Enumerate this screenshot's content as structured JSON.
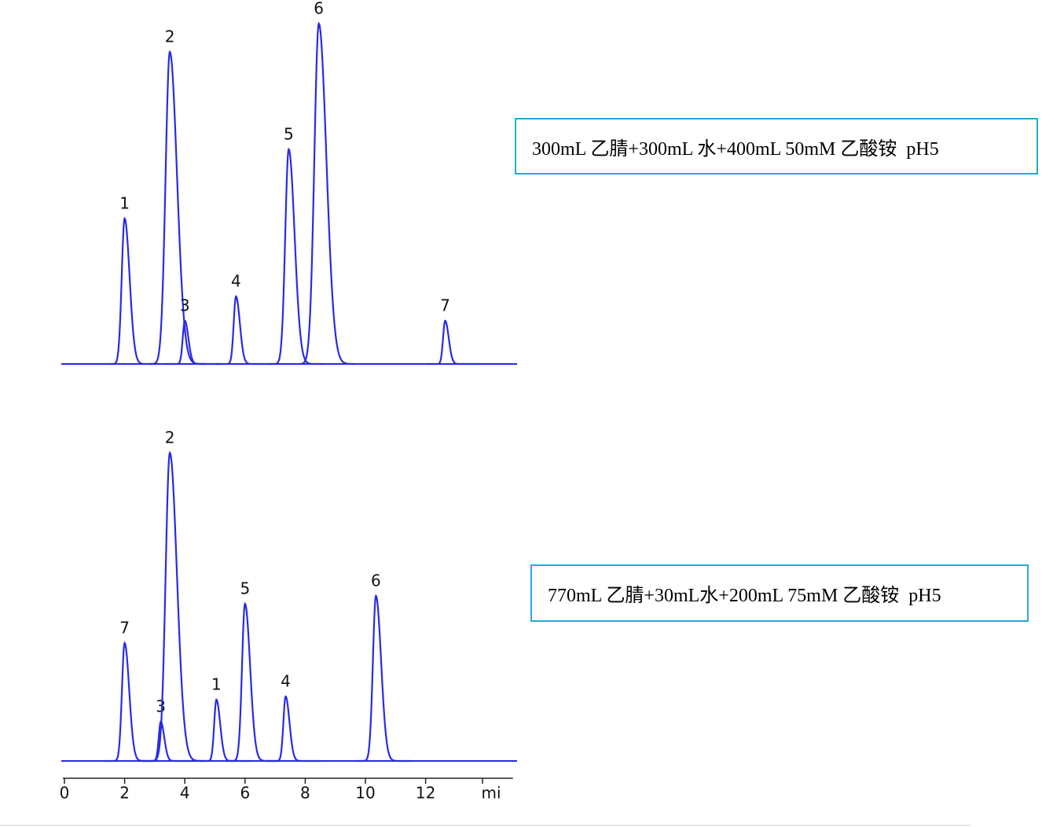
{
  "chart_data": [
    {
      "type": "chromatogram",
      "annotation": "300mL 乙腈+300mL 水+400mL 50mM 乙酸铵  pH5",
      "x": [
        2.0,
        3.5,
        4.0,
        5.7,
        7.45,
        8.45,
        12.65
      ],
      "values": [
        185,
        397,
        55,
        86,
        273,
        433,
        55
      ],
      "labels": [
        "1",
        "2",
        "3",
        "4",
        "5",
        "6",
        "7"
      ],
      "color": "#2a2ae6",
      "xlim": [
        0,
        14.9
      ],
      "ylim": [
        0,
        450
      ]
    },
    {
      "type": "chromatogram",
      "annotation": "770mL 乙腈+30mL水+200mL 75mM 乙酸铵  pH5",
      "x": [
        2.0,
        3.2,
        3.5,
        5.05,
        6.0,
        7.35,
        10.35
      ],
      "values": [
        150,
        50,
        392,
        78,
        200,
        82,
        210
      ],
      "labels": [
        "7",
        "3",
        "2",
        "1",
        "5",
        "4",
        "6"
      ],
      "color": "#2a2ae6",
      "xlim": [
        0,
        14.9
      ],
      "ylim": [
        0,
        450
      ],
      "xticks": [
        0,
        2,
        4,
        6,
        8,
        10,
        12
      ],
      "xlabel": "mi"
    }
  ]
}
